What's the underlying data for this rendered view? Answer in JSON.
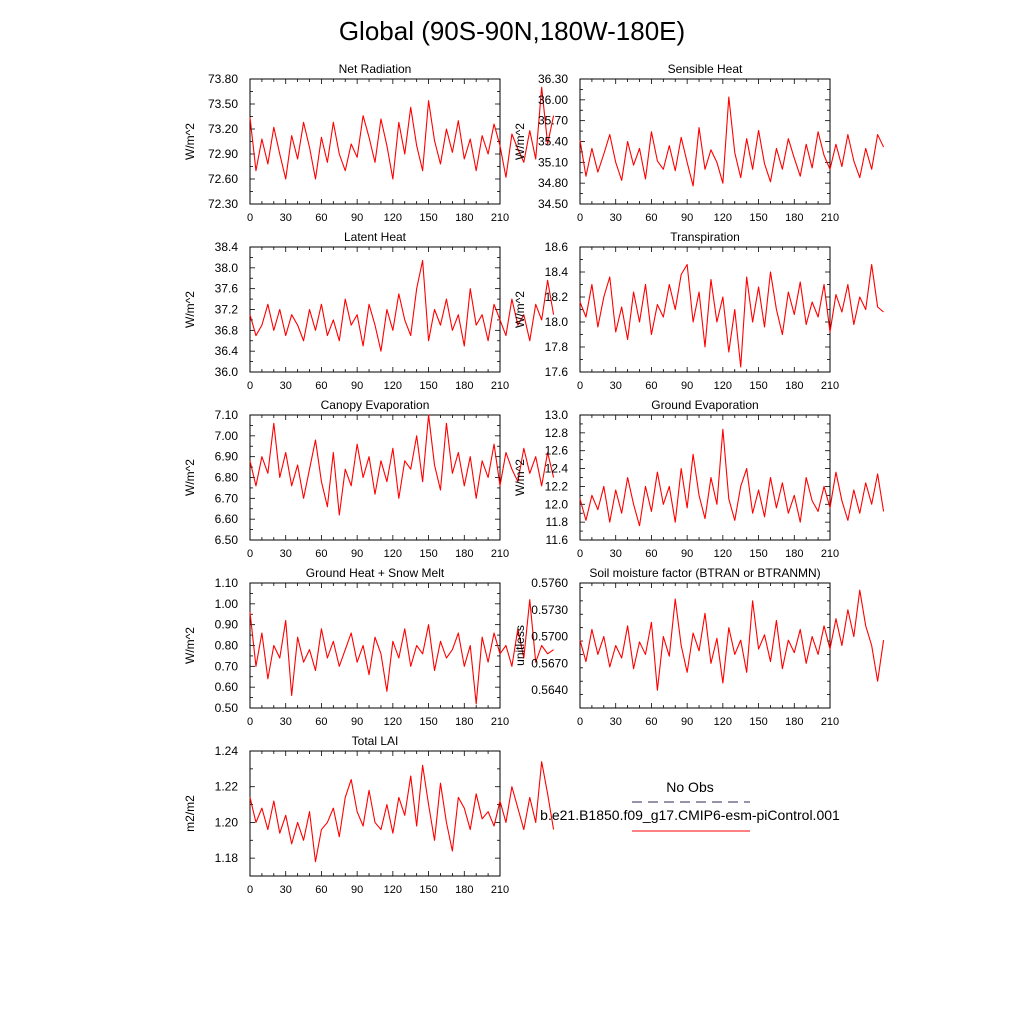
{
  "title": "Global (90S-90N,180W-180E)",
  "legend": {
    "obs_label": "No Obs",
    "obs_color": "#2a2a5a",
    "model_label": "b.e21.B1850.f09_g17.CMIP6-esm-piControl.001",
    "model_color": "#ff0000"
  },
  "chart_data": [
    {
      "type": "line",
      "title": "Net Radiation",
      "ylabel": "W/m^2",
      "xlim": [
        0,
        210
      ],
      "xticks": [
        "0",
        "30",
        "60",
        "90",
        "120",
        "150",
        "180",
        "210"
      ],
      "ylim": [
        72.3,
        73.8
      ],
      "yticks": [
        "72.30",
        "72.60",
        "72.90",
        "73.20",
        "73.50",
        "73.80"
      ],
      "series": [
        {
          "color": "#ff0000",
          "x_start": 0,
          "x_step": 5,
          "values": [
            73.34,
            72.7,
            73.08,
            72.78,
            73.22,
            72.9,
            72.6,
            73.12,
            72.84,
            73.28,
            72.98,
            72.6,
            73.1,
            72.8,
            73.28,
            72.9,
            72.7,
            73.02,
            72.86,
            73.36,
            73.1,
            72.8,
            73.32,
            73.0,
            72.6,
            73.28,
            72.9,
            73.46,
            73.0,
            72.7,
            73.54,
            73.06,
            72.78,
            73.2,
            72.92,
            73.3,
            72.84,
            73.08,
            72.7,
            73.12,
            72.9,
            73.26,
            73.0,
            72.62,
            73.14,
            72.96,
            72.8,
            73.18,
            72.84,
            73.7,
            73.02,
            73.36
          ]
        }
      ]
    },
    {
      "type": "line",
      "title": "Sensible Heat",
      "ylabel": "W/m^2",
      "xlim": [
        0,
        210
      ],
      "xticks": [
        "0",
        "30",
        "60",
        "90",
        "120",
        "150",
        "180",
        "210"
      ],
      "ylim": [
        34.5,
        36.3
      ],
      "yticks": [
        "34.50",
        "34.80",
        "35.10",
        "35.40",
        "35.70",
        "36.00",
        "36.30"
      ],
      "series": [
        {
          "color": "#ff0000",
          "x_start": 0,
          "x_step": 5,
          "values": [
            35.42,
            34.9,
            35.3,
            34.96,
            35.22,
            35.5,
            35.1,
            34.84,
            35.4,
            35.06,
            35.3,
            34.86,
            35.54,
            35.12,
            35.0,
            35.34,
            34.98,
            35.46,
            35.1,
            34.76,
            35.6,
            35.0,
            35.28,
            35.1,
            34.8,
            36.04,
            35.24,
            34.88,
            35.44,
            35.0,
            35.56,
            35.08,
            34.82,
            35.3,
            35.0,
            35.44,
            35.16,
            34.9,
            35.36,
            35.02,
            35.54,
            35.2,
            35.0,
            35.36,
            35.04,
            35.5,
            35.12,
            34.88,
            35.3,
            35.0,
            35.5,
            35.32
          ]
        }
      ]
    },
    {
      "type": "line",
      "title": "Latent Heat",
      "ylabel": "W/m^2",
      "xlim": [
        0,
        210
      ],
      "xticks": [
        "0",
        "30",
        "60",
        "90",
        "120",
        "150",
        "180",
        "210"
      ],
      "ylim": [
        36.0,
        38.4
      ],
      "yticks": [
        "36.0",
        "36.4",
        "36.8",
        "37.2",
        "37.6",
        "38.0",
        "38.4"
      ],
      "series": [
        {
          "color": "#ff0000",
          "x_start": 0,
          "x_step": 5,
          "values": [
            37.1,
            36.7,
            36.9,
            37.3,
            36.8,
            37.2,
            36.7,
            37.1,
            36.9,
            36.6,
            37.2,
            36.8,
            37.3,
            36.7,
            37.0,
            36.6,
            37.4,
            36.9,
            37.1,
            36.5,
            37.3,
            36.9,
            36.4,
            37.2,
            36.8,
            37.5,
            37.0,
            36.7,
            37.6,
            38.14,
            36.6,
            37.2,
            36.9,
            37.4,
            36.8,
            37.1,
            36.5,
            37.6,
            36.9,
            37.1,
            36.6,
            37.3,
            37.0,
            36.7,
            37.4,
            36.9,
            37.1,
            36.6,
            37.3,
            37.0,
            37.76,
            37.1
          ]
        }
      ]
    },
    {
      "type": "line",
      "title": "Transpiration",
      "ylabel": "W/m^2",
      "xlim": [
        0,
        210
      ],
      "xticks": [
        "0",
        "30",
        "60",
        "90",
        "120",
        "150",
        "180",
        "210"
      ],
      "ylim": [
        17.6,
        18.6
      ],
      "yticks": [
        "17.6",
        "17.8",
        "18.0",
        "18.2",
        "18.4",
        "18.6"
      ],
      "series": [
        {
          "color": "#ff0000",
          "x_start": 0,
          "x_step": 5,
          "values": [
            18.16,
            18.04,
            18.3,
            17.96,
            18.2,
            18.36,
            17.92,
            18.12,
            17.86,
            18.24,
            18.0,
            18.3,
            17.9,
            18.14,
            18.04,
            18.3,
            18.1,
            18.38,
            18.46,
            18.0,
            18.24,
            17.8,
            18.34,
            18.0,
            18.2,
            17.76,
            18.1,
            17.64,
            18.36,
            18.0,
            18.28,
            17.96,
            18.4,
            18.1,
            17.9,
            18.24,
            18.06,
            18.32,
            17.98,
            18.16,
            18.04,
            18.3,
            17.92,
            18.22,
            18.08,
            18.3,
            17.98,
            18.2,
            18.1,
            18.46,
            18.12,
            18.08
          ]
        }
      ]
    },
    {
      "type": "line",
      "title": "Canopy Evaporation",
      "ylabel": "W/m^2",
      "xlim": [
        0,
        210
      ],
      "xticks": [
        "0",
        "30",
        "60",
        "90",
        "120",
        "150",
        "180",
        "210"
      ],
      "ylim": [
        6.5,
        7.1
      ],
      "yticks": [
        "6.50",
        "6.60",
        "6.70",
        "6.80",
        "6.90",
        "7.00",
        "7.10"
      ],
      "series": [
        {
          "color": "#ff0000",
          "x_start": 0,
          "x_step": 5,
          "values": [
            6.88,
            6.76,
            6.9,
            6.82,
            7.06,
            6.8,
            6.92,
            6.76,
            6.86,
            6.7,
            6.84,
            6.98,
            6.78,
            6.66,
            6.92,
            6.62,
            6.84,
            6.76,
            6.96,
            6.8,
            6.9,
            6.72,
            6.88,
            6.78,
            6.94,
            6.7,
            6.88,
            6.84,
            7.0,
            6.78,
            7.1,
            6.86,
            6.74,
            7.06,
            6.82,
            6.92,
            6.76,
            6.9,
            6.7,
            6.88,
            6.8,
            6.96,
            6.76,
            6.92,
            6.84,
            6.78,
            6.94,
            6.82,
            6.9,
            6.76,
            6.92,
            6.8
          ]
        }
      ]
    },
    {
      "type": "line",
      "title": "Ground Evaporation",
      "ylabel": "W/m^2",
      "xlim": [
        0,
        210
      ],
      "xticks": [
        "0",
        "30",
        "60",
        "90",
        "120",
        "150",
        "180",
        "210"
      ],
      "ylim": [
        11.6,
        13.0
      ],
      "yticks": [
        "11.6",
        "11.8",
        "12.0",
        "12.2",
        "12.4",
        "12.6",
        "12.8",
        "13.0"
      ],
      "series": [
        {
          "color": "#ff0000",
          "x_start": 0,
          "x_step": 5,
          "values": [
            12.06,
            11.82,
            12.1,
            11.94,
            12.2,
            11.8,
            12.16,
            11.9,
            12.3,
            12.0,
            11.76,
            12.2,
            11.92,
            12.36,
            12.0,
            12.2,
            11.8,
            12.4,
            11.96,
            12.56,
            12.1,
            11.84,
            12.3,
            12.0,
            12.84,
            12.06,
            11.82,
            12.2,
            12.4,
            11.9,
            12.16,
            11.86,
            12.3,
            11.96,
            12.24,
            11.9,
            12.1,
            11.8,
            12.3,
            12.04,
            11.92,
            12.2,
            11.96,
            12.36,
            12.04,
            11.82,
            12.16,
            11.9,
            12.24,
            12.0,
            12.34,
            11.92
          ]
        }
      ]
    },
    {
      "type": "line",
      "title": "Ground Heat + Snow Melt",
      "ylabel": "W/m^2",
      "xlim": [
        0,
        210
      ],
      "xticks": [
        "0",
        "30",
        "60",
        "90",
        "120",
        "150",
        "180",
        "210"
      ],
      "ylim": [
        0.5,
        1.1
      ],
      "yticks": [
        "0.50",
        "0.60",
        "0.70",
        "0.80",
        "0.90",
        "1.00",
        "1.10"
      ],
      "series": [
        {
          "color": "#ff0000",
          "x_start": 0,
          "x_step": 5,
          "values": [
            0.96,
            0.7,
            0.86,
            0.64,
            0.8,
            0.74,
            0.92,
            0.56,
            0.84,
            0.72,
            0.78,
            0.68,
            0.88,
            0.74,
            0.82,
            0.7,
            0.78,
            0.86,
            0.72,
            0.8,
            0.66,
            0.84,
            0.76,
            0.58,
            0.82,
            0.74,
            0.88,
            0.7,
            0.8,
            0.76,
            0.9,
            0.68,
            0.82,
            0.74,
            0.78,
            0.86,
            0.7,
            0.8,
            0.52,
            0.84,
            0.72,
            0.86,
            0.76,
            0.8,
            0.7,
            0.88,
            0.74,
            1.02,
            0.72,
            0.8,
            0.76,
            0.78
          ]
        }
      ]
    },
    {
      "type": "line",
      "title": "Soil moisture factor (BTRAN or BTRANMN)",
      "ylabel": "unitless",
      "xlim": [
        0,
        210
      ],
      "xticks": [
        "0",
        "30",
        "60",
        "90",
        "120",
        "150",
        "180",
        "210"
      ],
      "ylim": [
        0.562,
        0.576
      ],
      "yticks": [
        "0.5640",
        "0.5670",
        "0.5700",
        "0.5730",
        "0.5760"
      ],
      "series": [
        {
          "color": "#ff0000",
          "x_start": 0,
          "x_step": 5,
          "values": [
            0.5696,
            0.5672,
            0.5708,
            0.568,
            0.57,
            0.5666,
            0.569,
            0.5676,
            0.5712,
            0.5664,
            0.5694,
            0.568,
            0.5716,
            0.564,
            0.57,
            0.5678,
            0.5742,
            0.569,
            0.566,
            0.5704,
            0.5684,
            0.5726,
            0.567,
            0.5698,
            0.5648,
            0.571,
            0.568,
            0.5696,
            0.566,
            0.574,
            0.5686,
            0.5702,
            0.5672,
            0.5718,
            0.5664,
            0.5696,
            0.5682,
            0.5708,
            0.567,
            0.57,
            0.568,
            0.5712,
            0.5686,
            0.572,
            0.569,
            0.573,
            0.57,
            0.5752,
            0.5712,
            0.569,
            0.565,
            0.5696
          ]
        }
      ]
    },
    {
      "type": "line",
      "title": "Total LAI",
      "ylabel": "m2/m2",
      "xlim": [
        0,
        210
      ],
      "xticks": [
        "0",
        "30",
        "60",
        "90",
        "120",
        "150",
        "180",
        "210"
      ],
      "ylim": [
        1.17,
        1.24
      ],
      "yticks": [
        "1.18",
        "1.20",
        "1.22",
        "1.24"
      ],
      "series": [
        {
          "color": "#ff0000",
          "x_start": 0,
          "x_step": 5,
          "values": [
            1.214,
            1.2,
            1.208,
            1.196,
            1.212,
            1.194,
            1.204,
            1.188,
            1.2,
            1.19,
            1.206,
            1.178,
            1.196,
            1.2,
            1.208,
            1.192,
            1.214,
            1.224,
            1.206,
            1.198,
            1.218,
            1.2,
            1.196,
            1.21,
            1.194,
            1.214,
            1.204,
            1.226,
            1.198,
            1.232,
            1.21,
            1.19,
            1.222,
            1.2,
            1.184,
            1.214,
            1.208,
            1.196,
            1.216,
            1.202,
            1.206,
            1.198,
            1.212,
            1.2,
            1.22,
            1.208,
            1.196,
            1.214,
            1.2,
            1.234,
            1.216,
            1.196
          ]
        }
      ]
    }
  ]
}
